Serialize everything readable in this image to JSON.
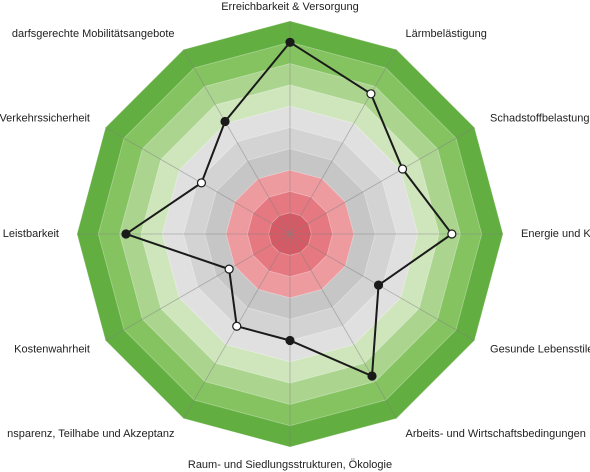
{
  "chart_data": {
    "type": "radar",
    "categories": [
      "Erreichbarkeit & Versorgung",
      "Lärmbelästigung",
      "Schadstoffbelastung",
      "Energie und Kli",
      "Gesunde Lebensstile",
      "Arbeits- und Wirtschaftsbedingungen",
      "Raum- und Siedlungsstrukturen, Ökologie",
      "nsparenz, Teilhabe und Akzeptanz",
      "Kostenwahrheit",
      "Leistbarkeit",
      "Verkehrssicherheit",
      "darfsgerechte Mobilitätsangebote"
    ],
    "values": [
      9.0,
      7.6,
      6.1,
      7.6,
      4.8,
      7.7,
      5.0,
      5.0,
      3.3,
      7.7,
      4.8,
      6.1
    ],
    "marker_colors": [
      "#1a1a1a",
      "#ffffff",
      "#ffffff",
      "#ffffff",
      "#1a1a1a",
      "#1a1a1a",
      "#1a1a1a",
      "#ffffff",
      "#ffffff",
      "#1a1a1a",
      "#ffffff",
      "#1a1a1a"
    ],
    "color": "#1a1a1a",
    "rlim": [
      0,
      10
    ],
    "rticks": [
      1,
      2,
      3,
      4,
      5,
      6,
      7,
      8,
      9,
      10
    ],
    "band_colors": [
      "#d65a65",
      "#e57880",
      "#ee9ba0",
      "#c6c6c6",
      "#d3d3d3",
      "#e0e0e0",
      "#cfe6bd",
      "#abd58f",
      "#85c361",
      "#62ae40"
    ]
  }
}
